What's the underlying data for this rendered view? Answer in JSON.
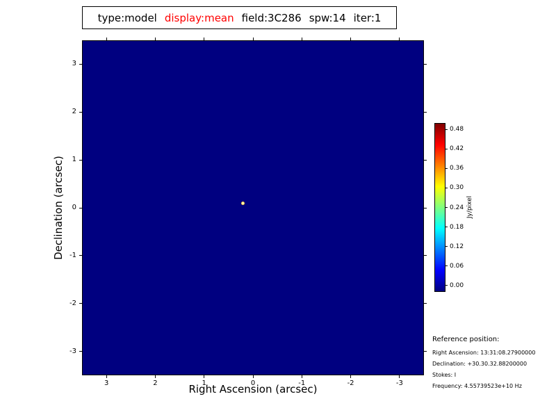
{
  "title": {
    "parts": [
      {
        "text": "type:model",
        "color": "#000000"
      },
      {
        "text": "display:mean",
        "color": "#ff0000"
      },
      {
        "text": "field:3C286",
        "color": "#000000"
      },
      {
        "text": "spw:14",
        "color": "#000000"
      },
      {
        "text": "iter:1",
        "color": "#000000"
      }
    ]
  },
  "chart_data": {
    "type": "heatmap",
    "title": "type:model display:mean field:3C286 spw:14 iter:1",
    "xlabel": "Right Ascension (arcsec)",
    "ylabel": "Declination (arcsec)",
    "xlim": [
      3.5,
      -3.5
    ],
    "ylim": [
      -3.5,
      3.5
    ],
    "x_ticks": [
      3,
      2,
      1,
      0,
      -1,
      -2,
      -3
    ],
    "y_ticks": [
      3,
      2,
      1,
      0,
      -1,
      -2,
      -3
    ],
    "grid": false,
    "colormap": "jet",
    "background_value": 0.0,
    "background_color": "#000080",
    "point_source": {
      "x_arcsec": 0.2,
      "y_arcsec": 0.1
    },
    "colorbar": {
      "label": "Jy/pixel",
      "ticks": [
        "0.00",
        "0.06",
        "0.12",
        "0.18",
        "0.24",
        "0.30",
        "0.36",
        "0.42",
        "0.48"
      ],
      "range": [
        -0.02,
        0.5
      ],
      "position": "right"
    }
  },
  "reference": {
    "heading": "Reference position:",
    "lines": [
      "Right Ascension: 13:31:08.27900000",
      "Declination: +30.30.32.88200000",
      "Stokes: I",
      "Frequency: 4.55739523e+10 Hz"
    ]
  }
}
